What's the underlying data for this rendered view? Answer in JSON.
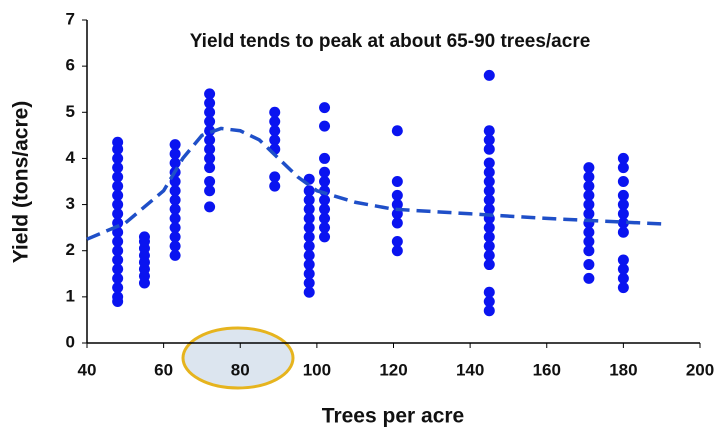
{
  "chart_data": {
    "type": "scatter",
    "annotation": "Yield tends to peak at about 65-90 trees/acre",
    "x_label": "Trees per acre",
    "y_label": "Yield (tons/acre)",
    "xlim": [
      40,
      200
    ],
    "xticks": [
      40,
      60,
      80,
      100,
      120,
      140,
      160,
      180,
      200
    ],
    "ylim": [
      0,
      7
    ],
    "yticks": [
      0,
      1,
      2,
      3,
      4,
      5,
      6,
      7
    ],
    "grid": false,
    "points": {
      "color": "#0a14f0",
      "x": [
        48,
        48,
        48,
        48,
        48,
        48,
        48,
        48,
        48,
        48,
        48,
        48,
        48,
        48,
        48,
        48,
        48,
        48,
        48,
        55,
        55,
        55,
        55,
        55,
        55,
        55,
        55,
        63,
        63,
        63,
        63,
        63,
        63,
        63,
        63,
        63,
        63,
        63,
        63,
        63,
        72,
        72,
        72,
        72,
        72,
        72,
        72,
        72,
        72,
        72,
        72,
        72,
        89,
        89,
        89,
        89,
        89,
        89,
        89,
        98,
        98,
        98,
        98,
        98,
        98,
        98,
        98,
        98,
        98,
        98,
        98,
        98,
        102,
        102,
        102,
        102,
        102,
        102,
        102,
        102,
        102,
        102,
        102,
        121,
        121,
        121,
        121,
        121,
        121,
        121,
        121,
        145,
        145,
        145,
        145,
        145,
        145,
        145,
        145,
        145,
        145,
        145,
        145,
        145,
        145,
        145,
        145,
        145,
        145,
        145,
        171,
        171,
        171,
        171,
        171,
        171,
        171,
        171,
        171,
        171,
        171,
        171,
        180,
        180,
        180,
        180,
        180,
        180,
        180,
        180,
        180,
        180,
        180,
        180
      ],
      "y": [
        0.9,
        1.0,
        1.2,
        1.4,
        1.6,
        1.8,
        2.0,
        2.2,
        2.4,
        2.6,
        2.8,
        3.0,
        3.2,
        3.4,
        3.6,
        3.8,
        4.0,
        4.2,
        4.35,
        1.3,
        1.45,
        1.6,
        1.75,
        1.9,
        2.05,
        2.2,
        2.3,
        1.9,
        2.1,
        2.3,
        2.5,
        2.7,
        2.9,
        3.1,
        3.3,
        3.5,
        3.7,
        3.9,
        4.1,
        4.3,
        2.95,
        3.3,
        3.5,
        3.8,
        4.0,
        4.2,
        4.4,
        4.6,
        4.8,
        5.0,
        5.2,
        5.4,
        3.4,
        3.6,
        4.2,
        4.4,
        4.6,
        4.8,
        5.0,
        1.1,
        1.3,
        1.5,
        1.7,
        1.9,
        2.1,
        2.3,
        2.5,
        2.7,
        2.9,
        3.1,
        3.3,
        3.55,
        2.3,
        2.5,
        2.7,
        2.9,
        3.1,
        3.3,
        3.5,
        3.7,
        4.0,
        4.7,
        5.1,
        2.0,
        2.2,
        2.6,
        2.8,
        3.0,
        3.2,
        3.5,
        4.6,
        0.7,
        0.9,
        1.1,
        1.7,
        1.9,
        2.1,
        2.3,
        2.5,
        2.7,
        2.9,
        3.1,
        3.3,
        3.5,
        3.7,
        3.9,
        4.2,
        4.4,
        4.6,
        5.8,
        1.4,
        1.7,
        2.0,
        2.2,
        2.4,
        2.6,
        2.8,
        3.0,
        3.2,
        3.4,
        3.6,
        3.8,
        1.2,
        1.4,
        1.6,
        1.8,
        2.4,
        2.6,
        2.8,
        3.0,
        3.2,
        3.5,
        3.8,
        4.0
      ]
    },
    "trend": {
      "color": "#1f4fc8",
      "x": [
        40,
        50,
        60,
        65,
        70,
        75,
        80,
        85,
        90,
        95,
        100,
        110,
        120,
        140,
        160,
        180,
        190
      ],
      "y": [
        2.25,
        2.6,
        3.3,
        4.0,
        4.5,
        4.65,
        4.6,
        4.4,
        4.0,
        3.6,
        3.3,
        3.05,
        2.9,
        2.8,
        2.7,
        2.62,
        2.58
      ]
    }
  }
}
